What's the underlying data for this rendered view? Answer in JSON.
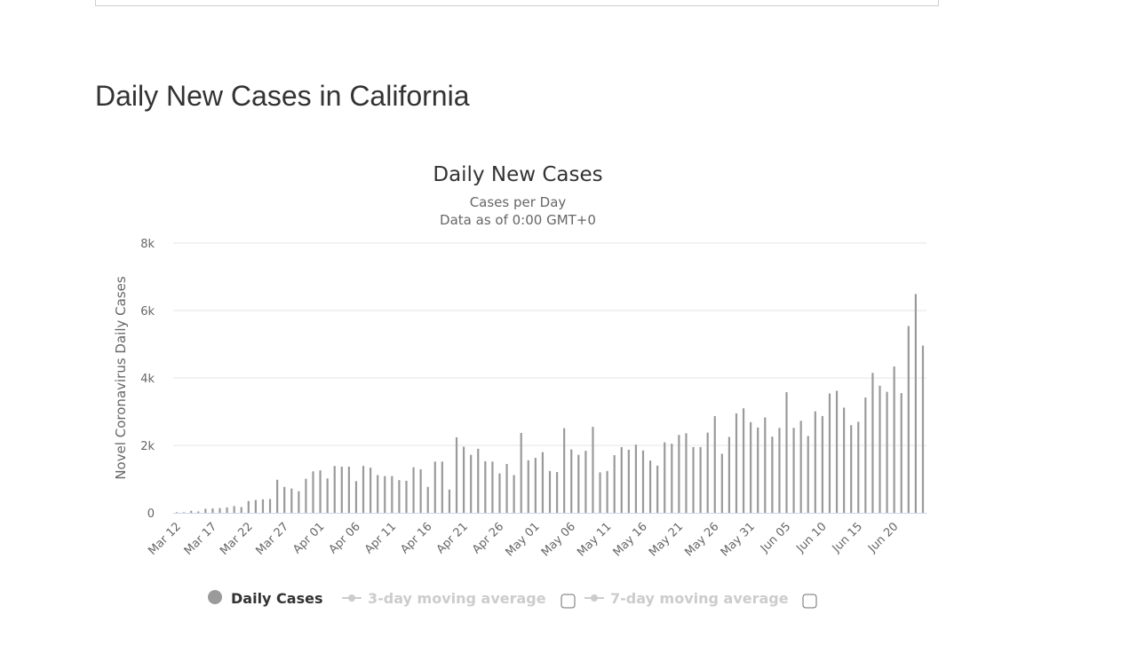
{
  "page": {
    "heading": "Daily New Cases in California"
  },
  "colors": {
    "bar": "#9a9a9a",
    "grid": "#e6e6e6",
    "axis_line": "#ccd6eb",
    "legend_active": "#333333",
    "legend_inactive": "#cccccc"
  },
  "chart_data": {
    "type": "bar",
    "title": "Daily New Cases",
    "subtitle_lines": [
      "Cases per Day",
      "Data as of 0:00 GMT+0"
    ],
    "xlabel": "",
    "ylabel": "Novel Coronavirus Daily Cases",
    "ylim": [
      0,
      8000
    ],
    "yticks": [
      0,
      2000,
      4000,
      6000,
      8000
    ],
    "ytick_labels": [
      "0",
      "2k",
      "4k",
      "6k",
      "8k"
    ],
    "grid": true,
    "legend_position": "bottom",
    "x_start": "Mar 12",
    "x_tick_labels": [
      "Mar 12",
      "Mar 17",
      "Mar 22",
      "Mar 27",
      "Apr 01",
      "Apr 06",
      "Apr 11",
      "Apr 16",
      "Apr 21",
      "Apr 26",
      "May 01",
      "May 06",
      "May 11",
      "May 16",
      "May 21",
      "May 26",
      "May 31",
      "Jun 05",
      "Jun 10",
      "Jun 15",
      "Jun 20"
    ],
    "x_tick_every": 5,
    "series": [
      {
        "name": "Daily Cases",
        "values": [
          10,
          15,
          60,
          40,
          120,
          130,
          140,
          160,
          200,
          170,
          350,
          380,
          400,
          410,
          980,
          770,
          720,
          640,
          1010,
          1230,
          1260,
          1020,
          1390,
          1370,
          1370,
          940,
          1390,
          1340,
          1120,
          1090,
          1090,
          970,
          950,
          1350,
          1290,
          770,
          1520,
          1520,
          690,
          2240,
          1960,
          1720,
          1900,
          1530,
          1520,
          1170,
          1450,
          1120,
          2370,
          1560,
          1630,
          1800,
          1240,
          1210,
          2510,
          1880,
          1720,
          1840,
          2550,
          1200,
          1240,
          1710,
          1950,
          1870,
          2020,
          1850,
          1550,
          1400,
          2090,
          2050,
          2310,
          2360,
          1950,
          1950,
          2380,
          2870,
          1750,
          2250,
          2950,
          3100,
          2690,
          2530,
          2830,
          2260,
          2520,
          3580,
          2520,
          2730,
          2280,
          3010,
          2870,
          3540,
          3620,
          3120,
          2600,
          2700,
          3420,
          4150,
          3770,
          3590,
          4340,
          3550,
          5540,
          6490,
          4960
        ]
      }
    ],
    "legend": [
      {
        "label": "Daily Cases",
        "active": true
      },
      {
        "label": "3-day moving average",
        "active": false
      },
      {
        "label": "7-day moving average",
        "active": false
      }
    ]
  }
}
